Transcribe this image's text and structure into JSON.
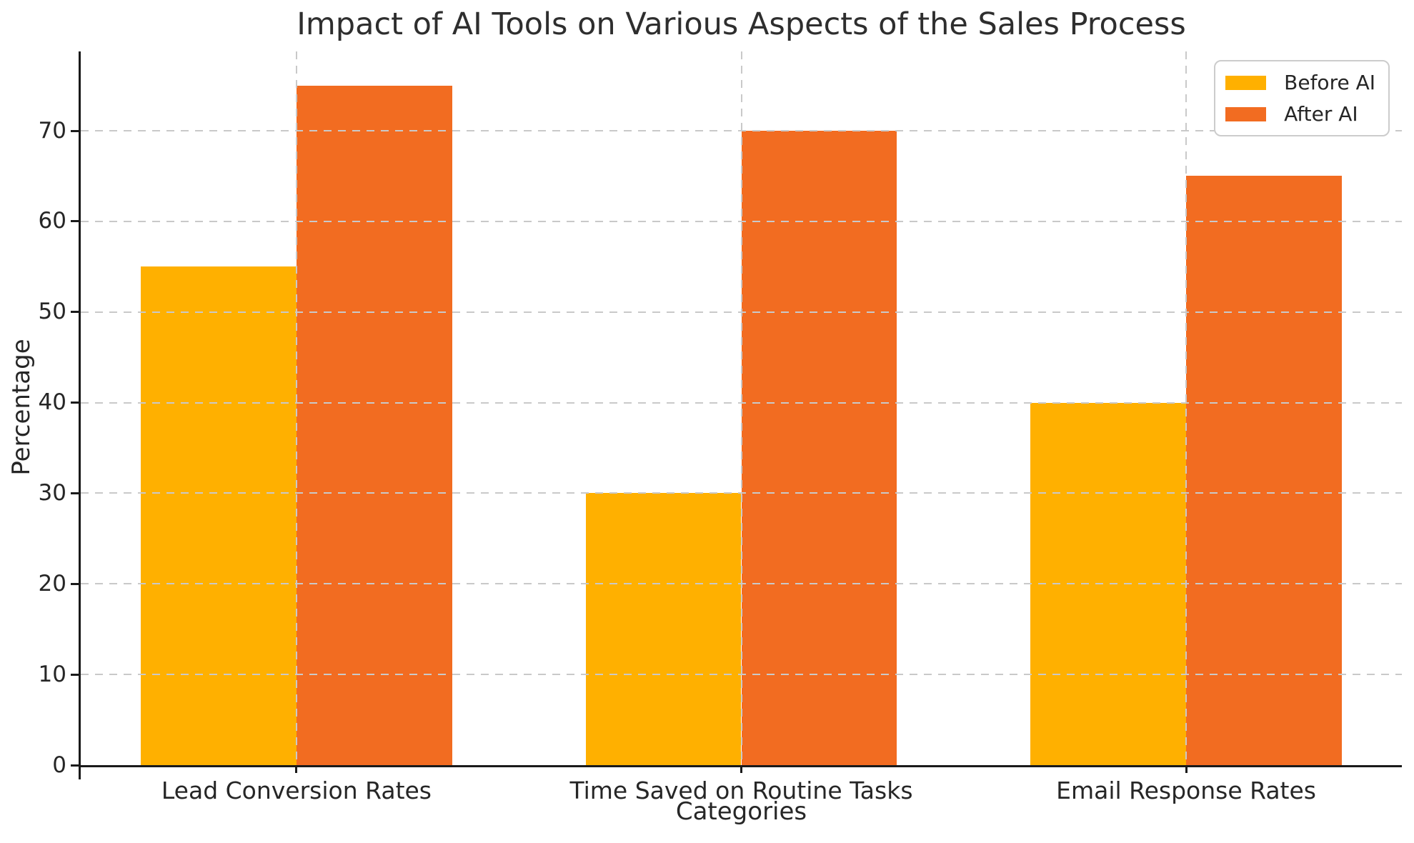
{
  "chart_data": {
    "type": "bar",
    "title": "Impact of AI Tools on Various Aspects of the Sales Process",
    "xlabel": "Categories",
    "ylabel": "Percentage",
    "categories": [
      "Lead Conversion Rates",
      "Time Saved on Routine Tasks",
      "Email Response Rates"
    ],
    "series": [
      {
        "name": "Before AI",
        "color": "#FFB000",
        "values": [
          55,
          30,
          40
        ]
      },
      {
        "name": "After AI",
        "color": "#F26C21",
        "values": [
          75,
          70,
          65
        ]
      }
    ],
    "yticks": [
      0,
      10,
      20,
      30,
      40,
      50,
      60,
      70
    ],
    "ylim": [
      0,
      78.75
    ],
    "xlim": [
      -0.485,
      2.485
    ],
    "bar_width": 0.35,
    "grid": "dashed, horizontal and vertical, drawn above bars",
    "legend_position": "upper right"
  },
  "colors": {
    "background": "#ffffff",
    "grid": "#c9c9c9",
    "spine": "#1a1a1a",
    "text": "#262626",
    "legend_border": "#cccccc"
  }
}
